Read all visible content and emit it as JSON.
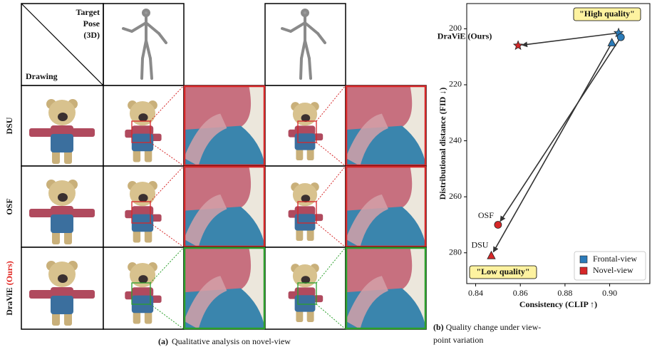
{
  "panel_a": {
    "corner_top": [
      "Target",
      "Pose",
      "(3D)"
    ],
    "corner_bottom": "Drawing",
    "rows": [
      {
        "name": "DSU"
      },
      {
        "name": "OSF"
      },
      {
        "name": "DraViE",
        "highlight": "(Ours)"
      }
    ],
    "caption": {
      "label": "(a)",
      "text": "Qualitative analysis on novel-view"
    }
  },
  "chart_data": {
    "type": "scatter",
    "xlabel": "Consistency (CLIP ↑)",
    "ylabel": "Distributional distance (FID ↓)",
    "xlim": [
      0.836,
      0.918
    ],
    "ylim": [
      191,
      291
    ],
    "y_inverted": true,
    "xticks": [
      0.84,
      0.86,
      0.88,
      {
        "value": 0.9,
        "label": "0.90"
      }
    ],
    "yticks": [
      200,
      220,
      240,
      260,
      280
    ],
    "markers": [
      "star",
      "circle",
      "triangle"
    ],
    "series": [
      {
        "name": "Frontal-view",
        "color": "#2b7bb9",
        "x": [
          0.904,
          0.905,
          0.901
        ],
        "values": [
          201.5,
          203,
          205
        ]
      },
      {
        "name": "Novel-view",
        "color": "#d62728",
        "x": [
          0.859,
          0.85,
          0.847
        ],
        "values": [
          206,
          270,
          281
        ],
        "point_labels": [
          "DraViE (Ours)",
          "OSF",
          "DSU"
        ]
      }
    ],
    "annotations": [
      "\"High quality\"",
      "\"Low quality\""
    ],
    "legend": "lower right",
    "caption": [
      "(b) Quality change under view-",
      "point variation"
    ]
  }
}
